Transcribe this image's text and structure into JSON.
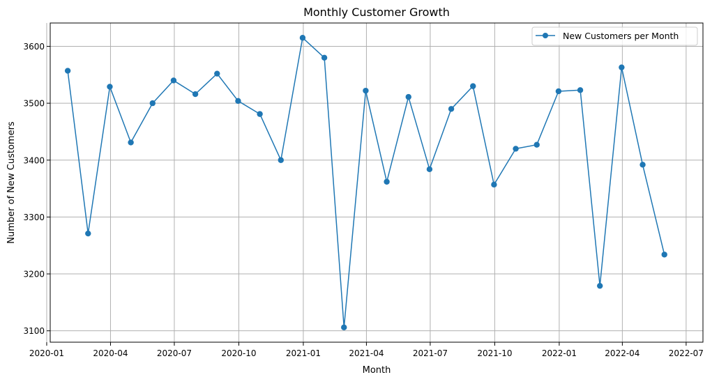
{
  "colors": {
    "series": "#1f77b4",
    "grid": "#b0b0b0",
    "axis": "#000000"
  },
  "chart_data": {
    "type": "line",
    "title": "Monthly Customer Growth",
    "xlabel": "Month",
    "ylabel": "Number of New Customers",
    "grid": true,
    "legend_position": "top-right",
    "x_tick_labels": [
      "2020-01",
      "2020-04",
      "2020-07",
      "2020-10",
      "2021-01",
      "2021-04",
      "2021-07",
      "2021-10",
      "2022-01",
      "2022-04",
      "2022-07"
    ],
    "x_ticks": [
      "2020-01-01",
      "2020-04-01",
      "2020-07-01",
      "2020-10-01",
      "2021-01-01",
      "2021-04-01",
      "2021-07-01",
      "2021-10-01",
      "2022-01-01",
      "2022-04-01",
      "2022-07-01"
    ],
    "y_ticks": [
      3100,
      3200,
      3300,
      3400,
      3500,
      3600
    ],
    "xlim": [
      "2020-01-06",
      "2022-07-25"
    ],
    "ylim": [
      3080,
      3641
    ],
    "series": [
      {
        "name": "New Customers per Month",
        "x": [
          "2020-01-31",
          "2020-02-29",
          "2020-03-31",
          "2020-04-30",
          "2020-05-31",
          "2020-06-30",
          "2020-07-31",
          "2020-08-31",
          "2020-09-30",
          "2020-10-31",
          "2020-11-30",
          "2020-12-31",
          "2021-01-31",
          "2021-02-28",
          "2021-03-31",
          "2021-04-30",
          "2021-05-31",
          "2021-06-30",
          "2021-07-31",
          "2021-08-31",
          "2021-09-30",
          "2021-10-31",
          "2021-11-30",
          "2021-12-31",
          "2022-01-31",
          "2022-02-28",
          "2022-03-31",
          "2022-04-30",
          "2022-05-31"
        ],
        "y": [
          3557,
          3271,
          3529,
          3431,
          3500,
          3540,
          3516,
          3552,
          3504,
          3481,
          3400,
          3615,
          3580,
          3106,
          3522,
          3362,
          3511,
          3384,
          3490,
          3530,
          3357,
          3420,
          3427,
          3521,
          3523,
          3179,
          3563,
          3392,
          3234
        ]
      }
    ]
  }
}
